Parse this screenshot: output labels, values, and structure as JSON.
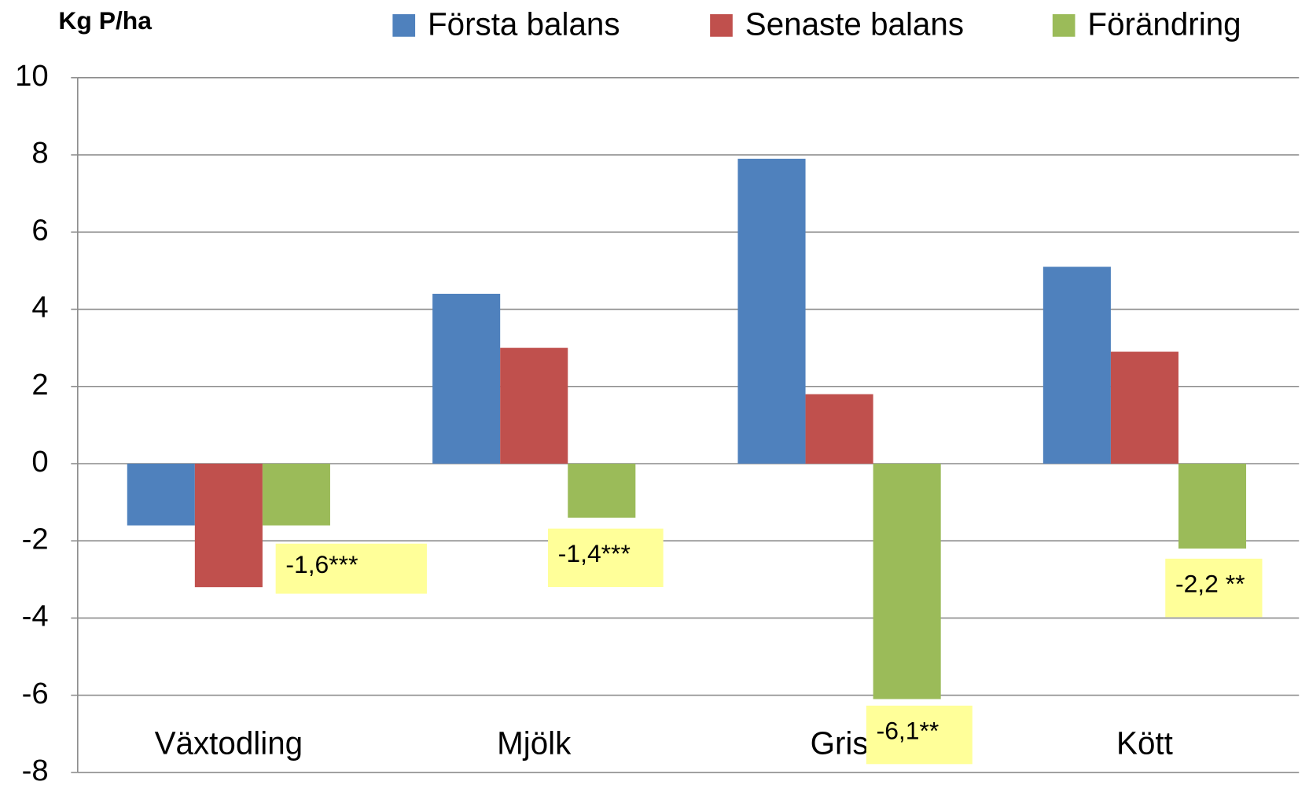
{
  "chart_data": {
    "type": "bar",
    "title": "Kg P/ha",
    "categories": [
      "Växtodling",
      "Mjölk",
      "Gris",
      "Kött"
    ],
    "series": [
      {
        "name": "Första balans",
        "color": "#4f81bd",
        "values": [
          -1.6,
          4.4,
          7.9,
          5.1
        ]
      },
      {
        "name": "Senaste balans",
        "color": "#c0504d",
        "values": [
          -3.2,
          3.0,
          1.8,
          2.9
        ]
      },
      {
        "name": "Förändring",
        "color": "#9bbb59",
        "values": [
          -1.6,
          -1.4,
          -6.1,
          -2.2
        ],
        "value_labels": [
          "-1,6***",
          "-1,4***",
          "-6,1**",
          "-2,2 **"
        ]
      }
    ],
    "ylim": [
      -8,
      10
    ],
    "yticks": [
      -8,
      -6,
      -4,
      -2,
      0,
      2,
      4,
      6,
      8,
      10
    ],
    "grid": true,
    "legend": "top"
  }
}
